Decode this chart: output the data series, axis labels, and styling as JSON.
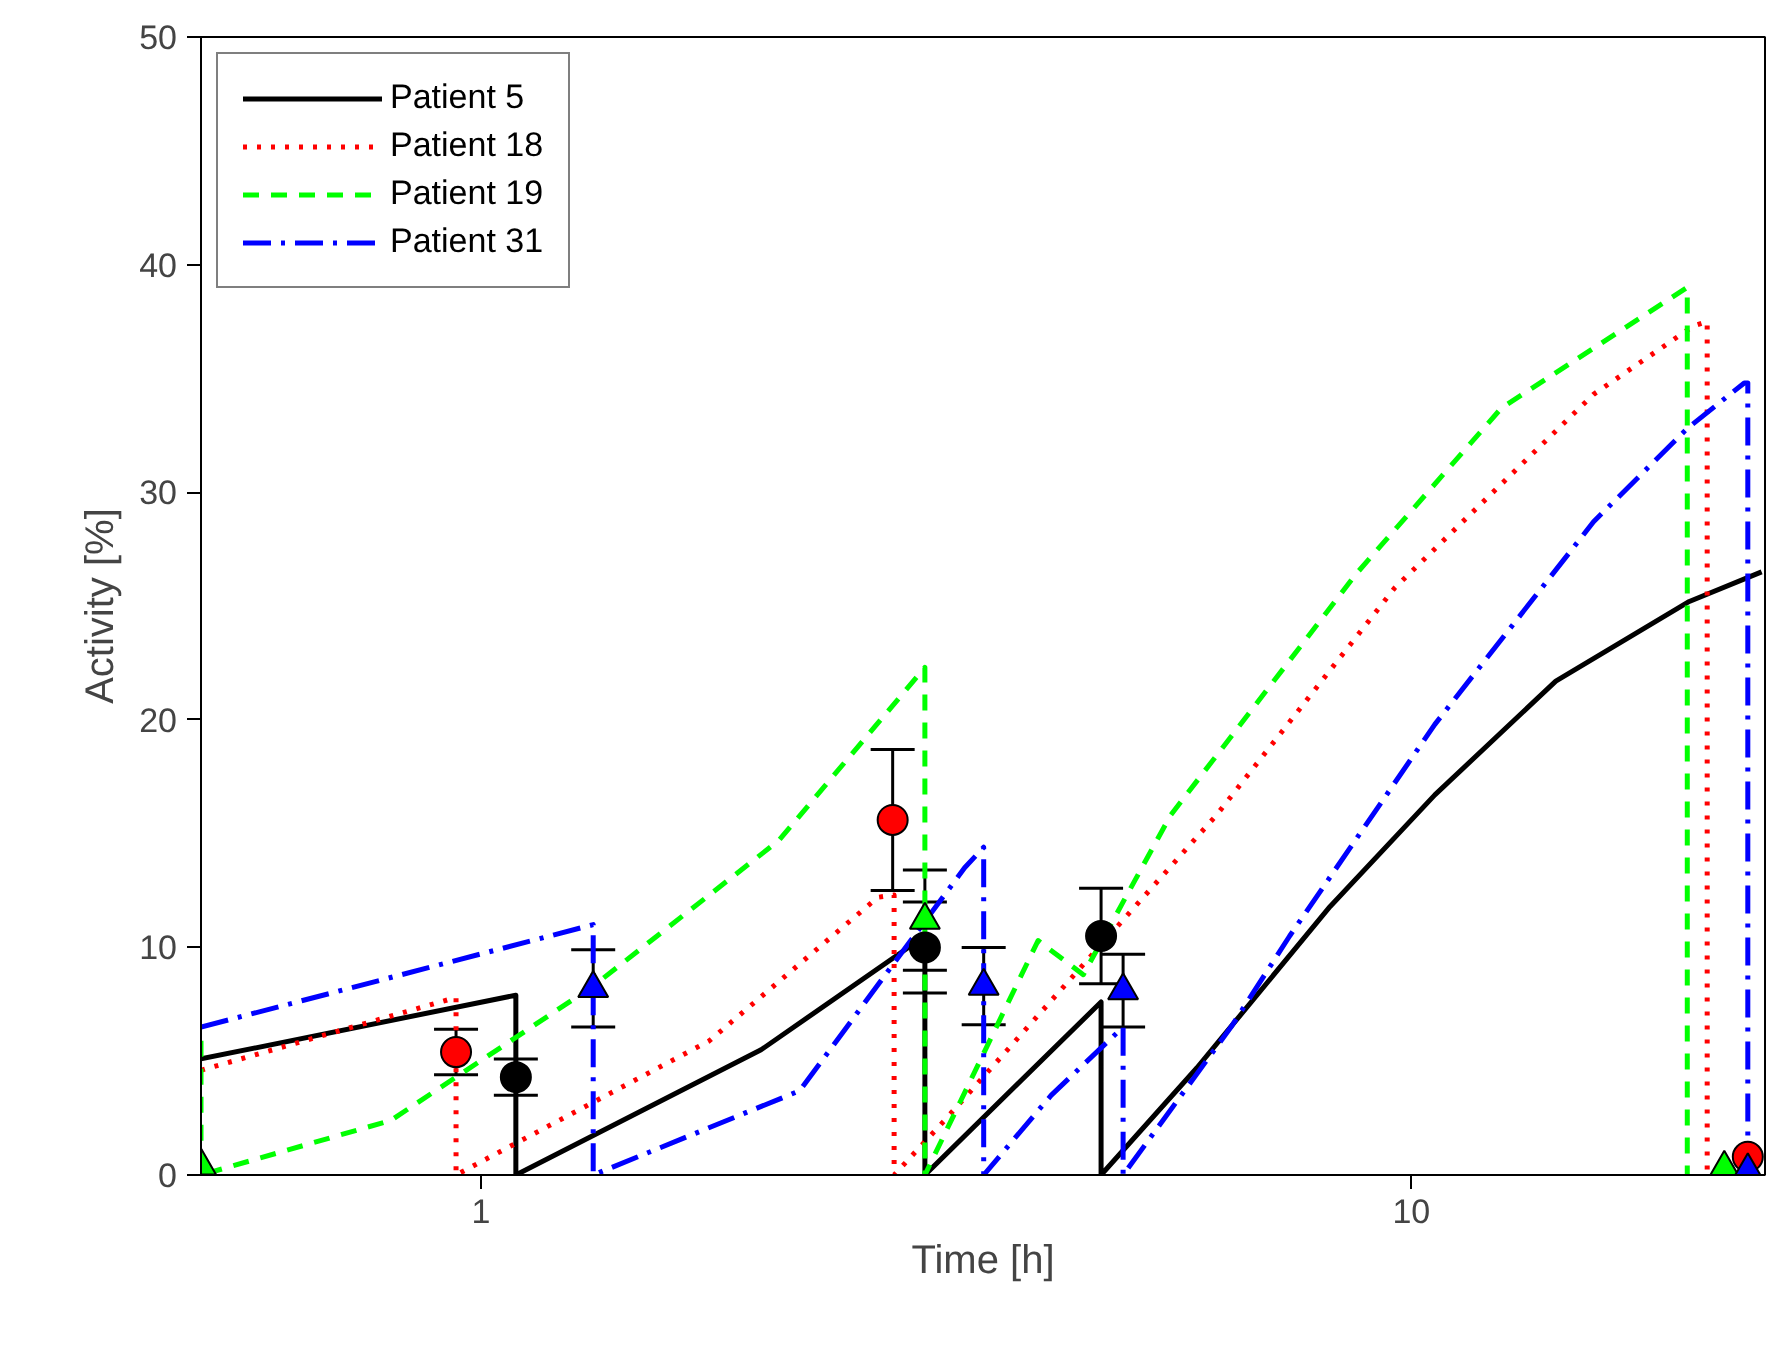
{
  "chart_data": {
    "type": "line",
    "xlabel": "Time [h]",
    "ylabel": "Activity [%]",
    "log": "x",
    "xlim": [
      0.5,
      24
    ],
    "xticks": [
      1,
      10
    ],
    "ylim": [
      0,
      50
    ],
    "yticks": [
      0,
      10,
      20,
      30,
      40,
      50
    ],
    "grid": false,
    "legend": "top left",
    "series": [
      {
        "name": "Patient 5",
        "color": "#000000",
        "line_style": "solid",
        "x": [
          0.5,
          1.09,
          1.09,
          2.0,
          3.0,
          3.0,
          4.64,
          4.64,
          5.88,
          8.18,
          10.6,
          14.3,
          19.9,
          23.8
        ],
        "values": [
          5.1,
          7.9,
          0,
          5.5,
          10.5,
          0,
          7.6,
          0,
          4.7,
          11.8,
          16.7,
          21.7,
          25.2,
          26.5
        ]
      },
      {
        "name": "Patient 18",
        "color": "#ff0000",
        "line_style": "dotted",
        "x": [
          0.5,
          0.94,
          0.94,
          1.76,
          2.67,
          2.78,
          2.78,
          3.15,
          6.17,
          9.6,
          15.7,
          20.1,
          20.8,
          20.8
        ],
        "values": [
          4.6,
          7.8,
          0,
          5.9,
          12.2,
          12.3,
          0,
          2.4,
          15.8,
          25.8,
          34.3,
          37.3,
          37.5,
          0
        ]
      },
      {
        "name": "Patient 19",
        "color": "#00ff00",
        "line_style": "dashed",
        "x": [
          0.5,
          0.5,
          0.8,
          1.32,
          2.09,
          3.0,
          3.0,
          3.97,
          4.44,
          5.51,
          8.72,
          12.5,
          19.8,
          19.8
        ],
        "values": [
          5.9,
          0,
          2.4,
          8.3,
          14.7,
          22.3,
          0,
          10.3,
          8.8,
          15.8,
          26.4,
          33.7,
          39.0,
          0
        ]
      },
      {
        "name": "Patient 31",
        "color": "#0000ff",
        "line_style": "dashdot",
        "x": [
          0.5,
          1.32,
          1.32,
          2.2,
          3.31,
          3.47,
          3.47,
          4.1,
          4.9,
          4.9,
          6.4,
          7.4,
          10.6,
          15.7,
          19.8,
          22.8,
          23.0,
          23.0
        ],
        "values": [
          6.5,
          11.0,
          0,
          3.7,
          13.5,
          14.4,
          0,
          3.5,
          6.5,
          0,
          6.5,
          10.5,
          19.8,
          28.7,
          32.8,
          34.8,
          34.8,
          0
        ]
      },
      {
        "type": "scatter",
        "color": "#ff0000",
        "marker": "circle",
        "x": [
          0.94,
          2.77,
          23.0
        ],
        "values": [
          5.4,
          15.6,
          0.8
        ],
        "errors": [
          1.0,
          3.1,
          null
        ]
      },
      {
        "type": "scatter",
        "color": "#000000",
        "marker": "circle",
        "x": [
          1.09,
          3.0,
          4.64
        ],
        "values": [
          4.3,
          10.0,
          10.5
        ],
        "errors": [
          0.8,
          2.0,
          2.1
        ]
      },
      {
        "type": "scatter",
        "color": "#00ff00",
        "marker": "triangle",
        "x": [
          0.5,
          3.0,
          21.7
        ],
        "values": [
          0.4,
          11.2,
          0.3
        ],
        "errors": [
          null,
          2.2,
          null
        ]
      },
      {
        "type": "scatter",
        "color": "#0000ff",
        "marker": "triangle",
        "x": [
          1.32,
          3.47,
          4.9,
          23.0
        ],
        "values": [
          8.2,
          8.3,
          8.1,
          0.2
        ],
        "errors": [
          1.7,
          1.7,
          1.6,
          null
        ]
      }
    ]
  }
}
